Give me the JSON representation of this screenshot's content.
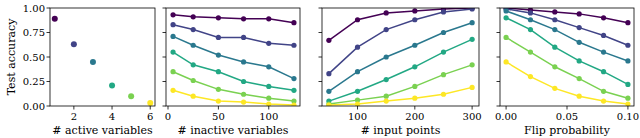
{
  "chart_data": [
    {
      "type": "scatter",
      "x_label": "# active variables",
      "y_label": "Test accuracy",
      "x": [
        1,
        2,
        3,
        4,
        5,
        6
      ],
      "values": [
        0.89,
        0.63,
        0.45,
        0.21,
        0.1,
        0.03
      ],
      "colors": [
        "#440154",
        "#414487",
        "#2a788e",
        "#22a884",
        "#7ad151",
        "#fde725"
      ],
      "marker": "circle",
      "xlim": [
        0.75,
        6.25
      ],
      "ylim": [
        0,
        1
      ],
      "xticks": [
        2,
        4,
        6
      ],
      "yticks": [
        {
          "value": 0,
          "label": "0.00"
        },
        {
          "value": 0.25,
          "label": "0.25"
        },
        {
          "value": 0.5,
          "label": "0.50"
        },
        {
          "value": 0.75,
          "label": "0.75"
        },
        {
          "value": 1,
          "label": "1.00"
        }
      ]
    },
    {
      "type": "line",
      "x_label": "# inactive variables",
      "marker": "circle",
      "tick_labels": "x",
      "x": [
        5,
        25,
        50,
        75,
        100,
        125
      ],
      "series": [
        {
          "color": "#440154",
          "values": [
            0.93,
            0.91,
            0.9,
            0.89,
            0.89,
            0.85
          ]
        },
        {
          "color": "#414487",
          "values": [
            0.83,
            0.78,
            0.7,
            0.7,
            0.64,
            0.62
          ]
        },
        {
          "color": "#2a788e",
          "values": [
            0.71,
            0.62,
            0.52,
            0.45,
            0.4,
            0.28
          ]
        },
        {
          "color": "#22a884",
          "values": [
            0.55,
            0.42,
            0.35,
            0.25,
            0.2,
            0.16
          ]
        },
        {
          "color": "#7ad151",
          "values": [
            0.35,
            0.26,
            0.17,
            0.12,
            0.08,
            0.05
          ]
        },
        {
          "color": "#fde725",
          "values": [
            0.16,
            0.1,
            0.05,
            0.04,
            0.02,
            0.01
          ]
        }
      ],
      "xlim": [
        -2,
        131
      ],
      "ylim": [
        0,
        1
      ],
      "xticks": [
        0,
        50,
        100
      ],
      "yticks": [
        0,
        0.25,
        0.5,
        0.75,
        1
      ]
    },
    {
      "type": "line",
      "x_label": "# input points",
      "marker": "circle",
      "tick_labels": "x",
      "x": [
        50,
        100,
        150,
        200,
        250,
        300
      ],
      "series": [
        {
          "color": "#440154",
          "values": [
            0.67,
            0.88,
            0.95,
            0.97,
            0.99,
            1.0
          ]
        },
        {
          "color": "#414487",
          "values": [
            0.33,
            0.6,
            0.78,
            0.88,
            0.96,
            0.99
          ]
        },
        {
          "color": "#2a788e",
          "values": [
            0.15,
            0.35,
            0.5,
            0.62,
            0.75,
            0.85
          ]
        },
        {
          "color": "#22a884",
          "values": [
            0.05,
            0.15,
            0.27,
            0.4,
            0.55,
            0.68
          ]
        },
        {
          "color": "#7ad151",
          "values": [
            0.02,
            0.06,
            0.1,
            0.2,
            0.32,
            0.42
          ]
        },
        {
          "color": "#fde725",
          "values": [
            0.01,
            0.02,
            0.05,
            0.08,
            0.12,
            0.19
          ]
        }
      ],
      "xlim": [
        38,
        312
      ],
      "ylim": [
        0,
        1
      ],
      "xticks": [
        100,
        200,
        300
      ],
      "yticks": [
        0,
        0.25,
        0.5,
        0.75,
        1
      ]
    },
    {
      "type": "line",
      "x_label": "Flip probability",
      "marker": "circle",
      "tick_labels": "x",
      "x": [
        0,
        0.02,
        0.04,
        0.06,
        0.08,
        0.1
      ],
      "series": [
        {
          "color": "#440154",
          "values": [
            1.0,
            0.98,
            0.96,
            0.94,
            0.9,
            0.85
          ]
        },
        {
          "color": "#414487",
          "values": [
            0.99,
            0.95,
            0.88,
            0.8,
            0.72,
            0.62
          ]
        },
        {
          "color": "#2a788e",
          "values": [
            0.97,
            0.88,
            0.78,
            0.65,
            0.55,
            0.46
          ]
        },
        {
          "color": "#22a884",
          "values": [
            0.9,
            0.78,
            0.6,
            0.46,
            0.35,
            0.22
          ]
        },
        {
          "color": "#7ad151",
          "values": [
            0.7,
            0.55,
            0.4,
            0.28,
            0.15,
            0.08
          ]
        },
        {
          "color": "#fde725",
          "values": [
            0.45,
            0.3,
            0.18,
            0.1,
            0.05,
            0.02
          ]
        }
      ],
      "xlim": [
        -0.005,
        0.105
      ],
      "ylim": [
        0,
        1
      ],
      "xticks": [
        {
          "value": 0,
          "label": "0.00"
        },
        {
          "value": 0.05,
          "label": "0.05"
        },
        {
          "value": 0.1,
          "label": "0.10"
        }
      ],
      "yticks": [
        0,
        0.25,
        0.5,
        0.75,
        1
      ]
    }
  ]
}
